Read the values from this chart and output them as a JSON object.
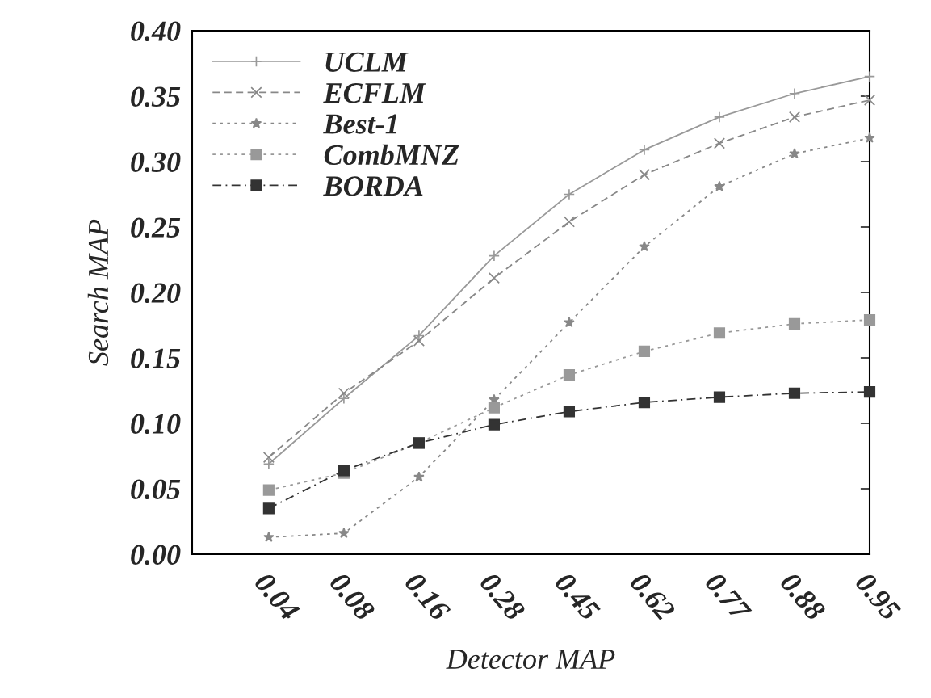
{
  "chart_data": {
    "type": "line",
    "xlabel": "Detector MAP",
    "ylabel": "Search MAP",
    "categories": [
      "0.04",
      "0.08",
      "0.16",
      "0.28",
      "0.45",
      "0.62",
      "0.77",
      "0.88",
      "0.95"
    ],
    "series": [
      {
        "name": "UCLM",
        "color": "#999999",
        "marker": "plus",
        "line_style": "solid",
        "values": [
          0.069,
          0.119,
          0.167,
          0.228,
          0.275,
          0.309,
          0.334,
          0.352,
          0.365
        ]
      },
      {
        "name": "ECFLM",
        "color": "#888888",
        "marker": "cross",
        "line_style": "dashed",
        "values": [
          0.074,
          0.123,
          0.163,
          0.211,
          0.254,
          0.29,
          0.314,
          0.334,
          0.347
        ]
      },
      {
        "name": "Best-1",
        "color": "#888888",
        "marker": "star",
        "line_style": "dotted",
        "values": [
          0.013,
          0.016,
          0.059,
          0.118,
          0.177,
          0.235,
          0.281,
          0.306,
          0.318
        ]
      },
      {
        "name": "CombMNZ",
        "color": "#999999",
        "marker": "square",
        "line_style": "dotted",
        "values": [
          0.049,
          0.062,
          0.085,
          0.112,
          0.137,
          0.155,
          0.169,
          0.176,
          0.179
        ]
      },
      {
        "name": "BORDA",
        "color": "#333333",
        "marker": "square",
        "line_style": "dashdot",
        "values": [
          0.035,
          0.064,
          0.085,
          0.099,
          0.109,
          0.116,
          0.12,
          0.123,
          0.124
        ]
      }
    ],
    "ylim": [
      0,
      0.4
    ],
    "yticks": [
      {
        "value": 0,
        "label": "0.00"
      },
      {
        "value": 0.05,
        "label": "0.05"
      },
      {
        "value": 0.1,
        "label": "0.10"
      },
      {
        "value": 0.15,
        "label": "0.15"
      },
      {
        "value": 0.2,
        "label": "0.20"
      },
      {
        "value": 0.25,
        "label": "0.25"
      },
      {
        "value": 0.3,
        "label": "0.30"
      },
      {
        "value": 0.35,
        "label": "0.35"
      },
      {
        "value": 0.4,
        "label": "0.40"
      }
    ],
    "grid": false,
    "legend": "top left"
  }
}
